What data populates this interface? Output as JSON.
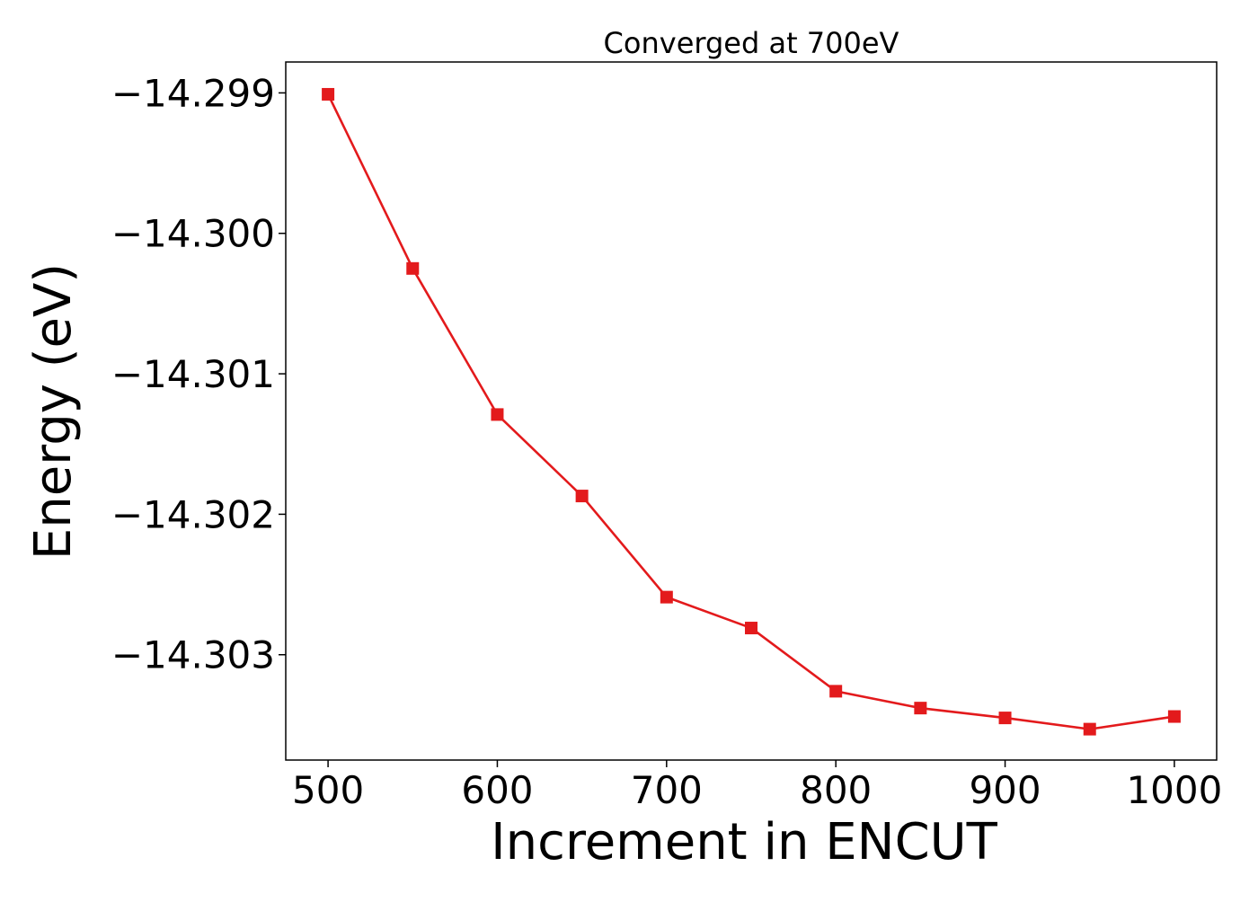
{
  "chart_data": {
    "type": "line",
    "title": "Converged at 700eV",
    "xlabel": "Increment in ENCUT",
    "ylabel": "Energy (eV)",
    "x": [
      500,
      550,
      600,
      650,
      700,
      750,
      800,
      850,
      900,
      950,
      1000
    ],
    "series": [
      {
        "values": [
          -14.29901,
          -14.30025,
          -14.30129,
          -14.30187,
          -14.30259,
          -14.30281,
          -14.30326,
          -14.30338,
          -14.30345,
          -14.30353,
          -14.30344
        ]
      }
    ],
    "xlim": [
      475,
      1025
    ],
    "ylim": [
      -14.30375,
      -14.29878
    ],
    "xticks": [
      500,
      600,
      700,
      800,
      900,
      1000
    ],
    "xtick_labels": [
      "500",
      "600",
      "700",
      "800",
      "900",
      "1000"
    ],
    "yticks": [
      -14.299,
      -14.3,
      -14.301,
      -14.302,
      -14.303
    ],
    "ytick_labels": [
      "−14.299",
      "−14.300",
      "−14.301",
      "−14.302",
      "−14.303"
    ],
    "marker": "square",
    "line_color": "#e31a1c",
    "grid": false,
    "legend": "none"
  }
}
